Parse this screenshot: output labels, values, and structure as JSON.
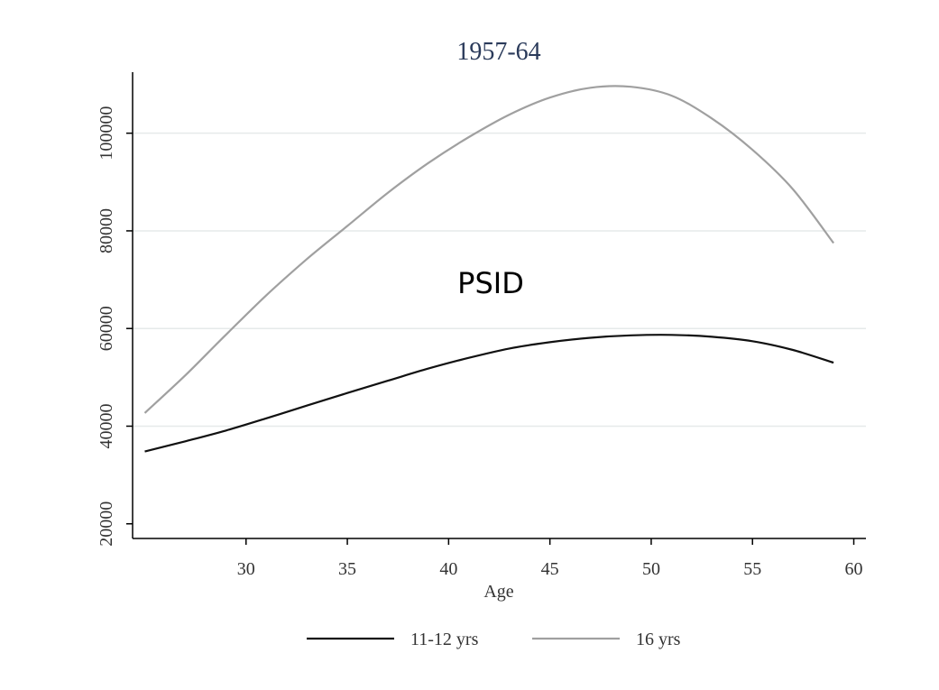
{
  "chart_data": {
    "type": "line",
    "title": "1957-64",
    "annotation": "PSID",
    "xlabel": "Age",
    "ylabel": "",
    "xlim": [
      24.4,
      60.6
    ],
    "ylim": [
      17000,
      112500
    ],
    "x_ticks": [
      30,
      35,
      40,
      45,
      50,
      55,
      60
    ],
    "y_ticks": [
      20000,
      40000,
      60000,
      80000,
      100000
    ],
    "grid": true,
    "legend_position": "bottom",
    "series": [
      {
        "name": "11-12 yrs",
        "color": "#111111",
        "x": [
          25,
          27,
          29,
          31,
          33,
          35,
          37,
          39,
          41,
          43,
          45,
          47,
          49,
          51,
          53,
          55,
          57,
          59
        ],
        "y": [
          34800,
          36900,
          39100,
          41600,
          44200,
          46800,
          49300,
          51800,
          54000,
          55900,
          57200,
          58100,
          58600,
          58700,
          58300,
          57400,
          55600,
          53000
        ]
      },
      {
        "name": "16 yrs",
        "color": "#a0a0a0",
        "x": [
          25,
          27,
          29,
          31,
          33,
          35,
          37,
          39,
          41,
          43,
          45,
          47,
          49,
          51,
          53,
          55,
          57,
          59
        ],
        "y": [
          42700,
          50400,
          58700,
          66800,
          74200,
          81000,
          87800,
          93900,
          99200,
          103800,
          107300,
          109300,
          109500,
          107700,
          103000,
          96600,
          88500,
          77500
        ]
      }
    ]
  }
}
